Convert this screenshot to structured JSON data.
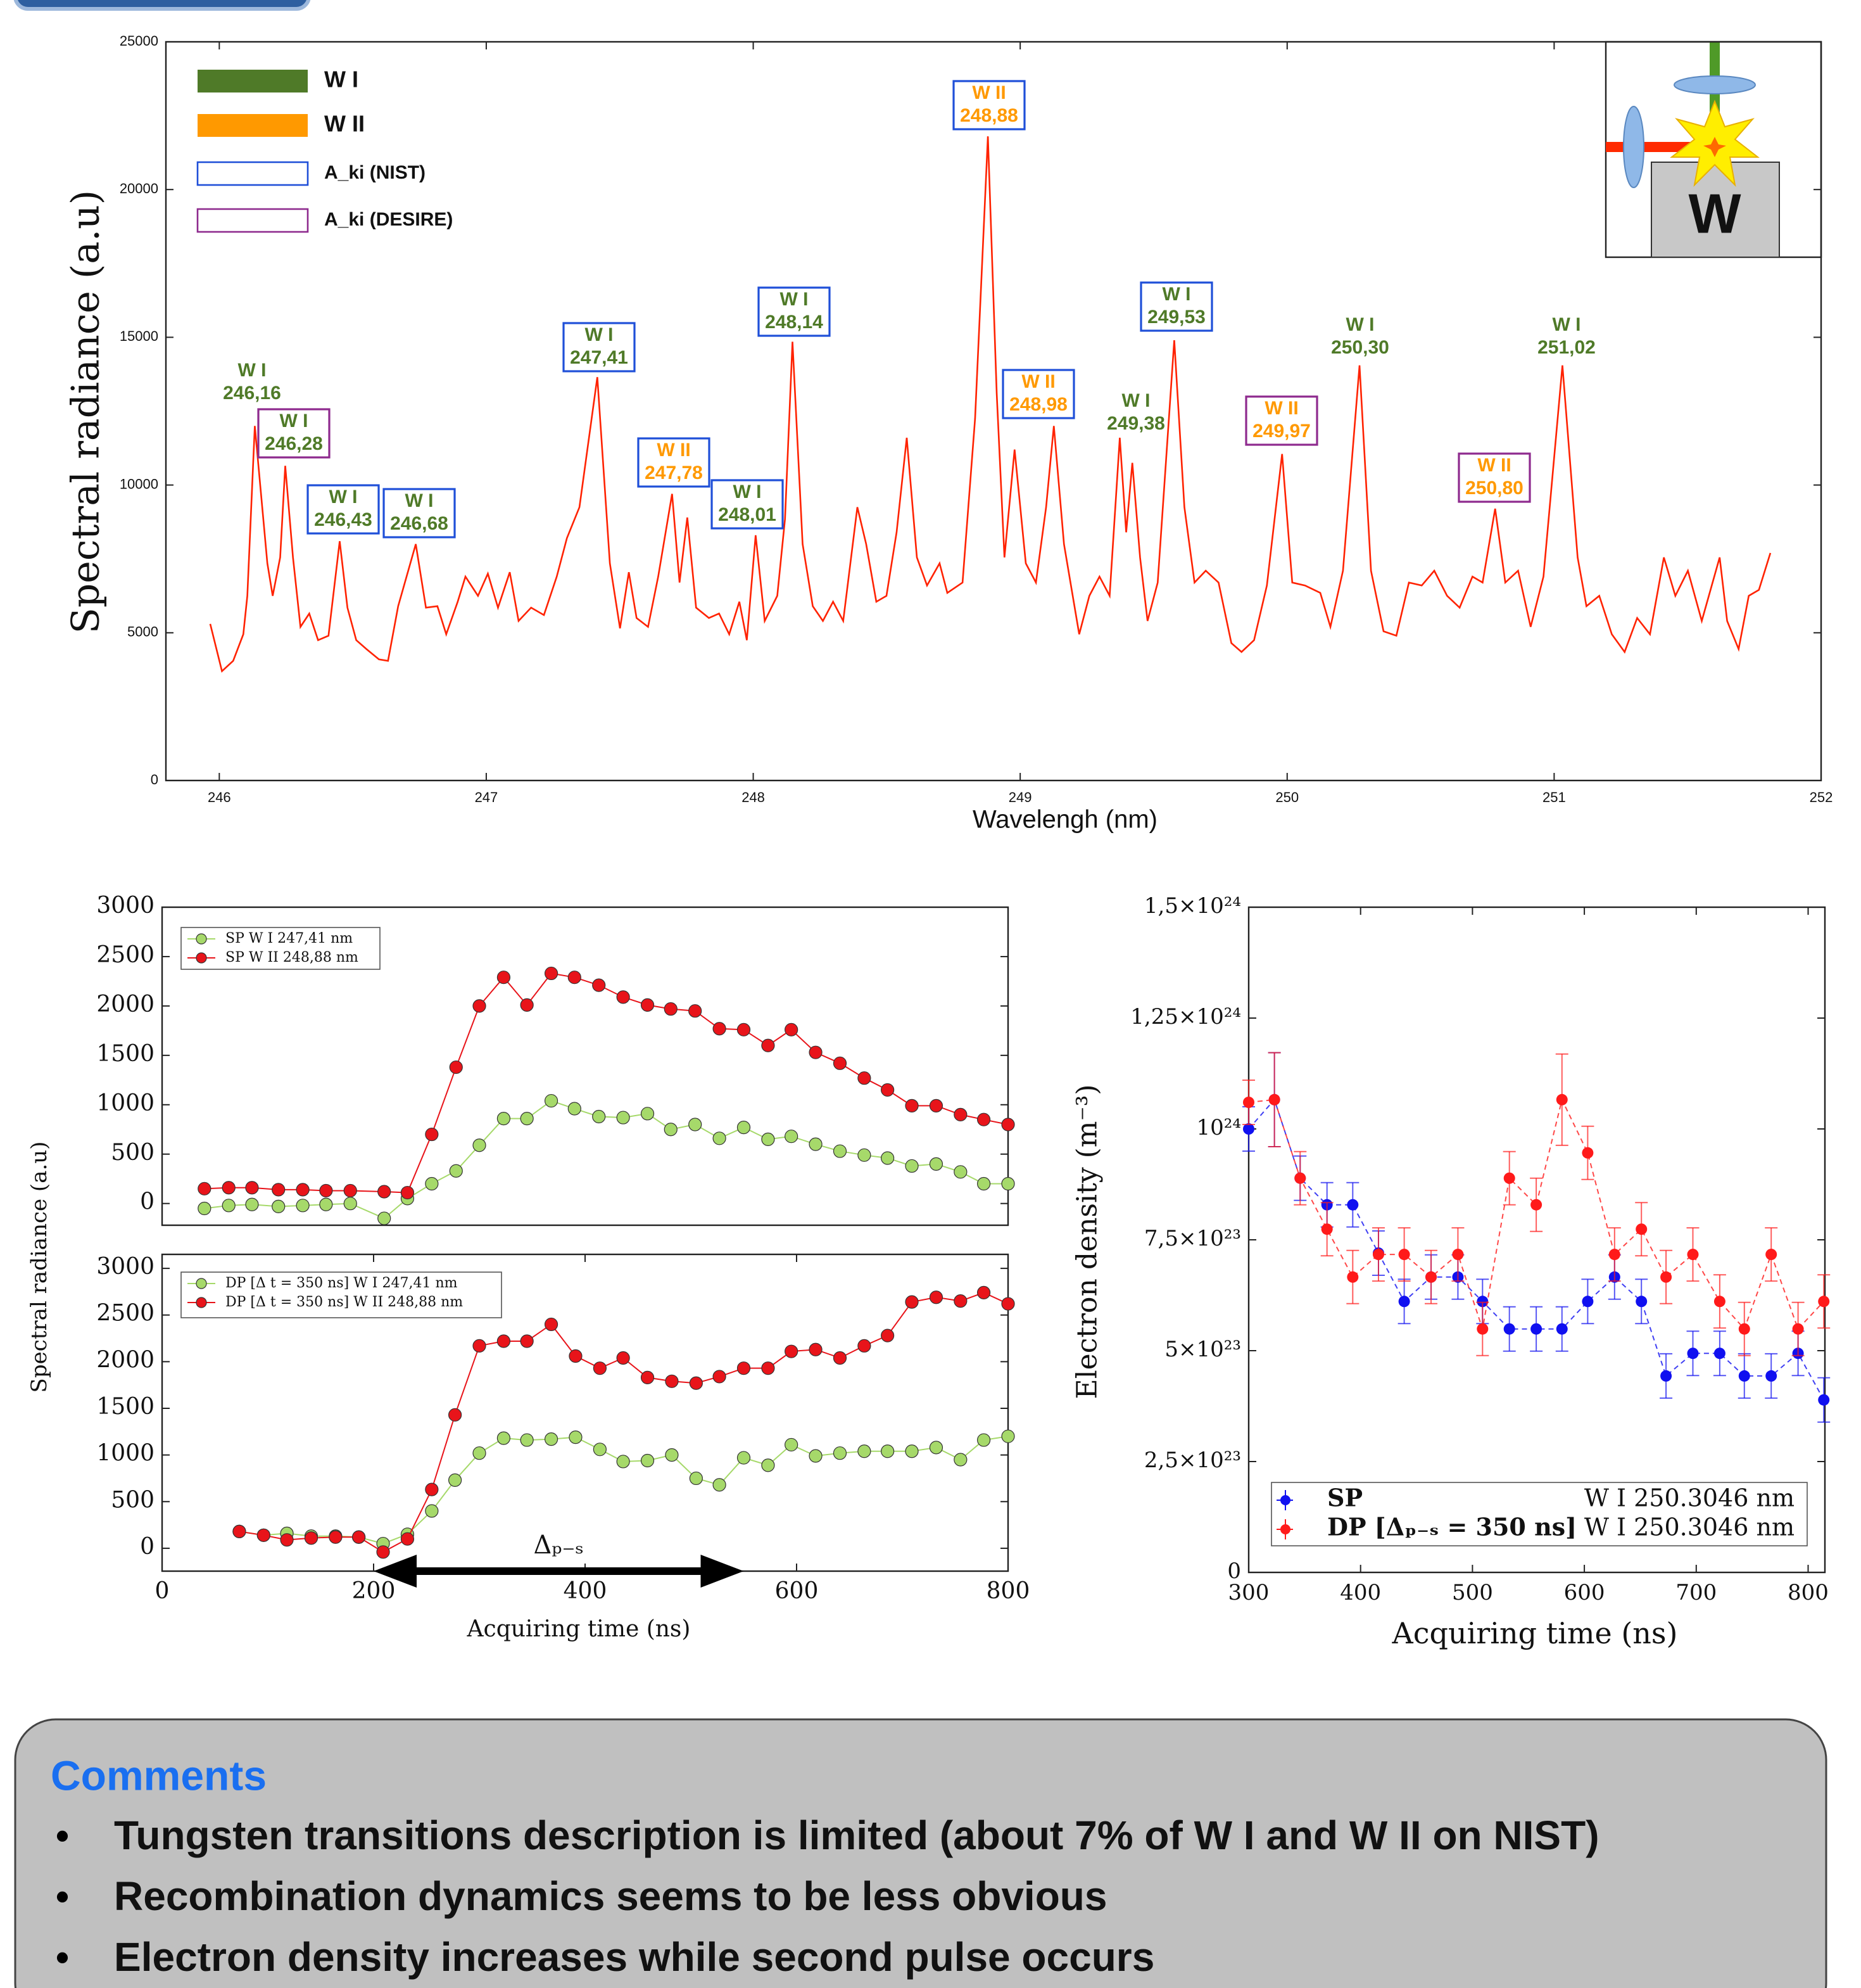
{
  "chart_data": [
    {
      "type": "line",
      "xlabel": "Wavelengh (nm)",
      "ylabel": "Spectral radiance (a.u)",
      "color": "#ff2200",
      "xlim": [
        245.8,
        252
      ],
      "xticks": [
        246,
        247,
        248,
        249,
        250,
        251,
        252
      ],
      "ylim": [
        0,
        25000
      ],
      "yticks": [
        0,
        5000,
        10000,
        15000,
        20000,
        25000
      ],
      "x": [
        245.966,
        246.01,
        246.052,
        246.09,
        246.105,
        246.133,
        246.18,
        246.2,
        246.228,
        246.247,
        246.276,
        246.304,
        246.337,
        246.37,
        246.409,
        246.451,
        246.48,
        246.513,
        246.551,
        246.598,
        246.632,
        246.67,
        246.736,
        246.774,
        246.817,
        246.85,
        246.893,
        246.922,
        246.969,
        247.006,
        247.044,
        247.088,
        247.121,
        247.168,
        247.216,
        247.264,
        247.302,
        247.349,
        247.416,
        247.463,
        247.501,
        247.534,
        247.563,
        247.606,
        247.644,
        247.696,
        247.724,
        247.753,
        247.786,
        247.834,
        247.872,
        247.91,
        247.948,
        247.976,
        248.009,
        248.043,
        248.09,
        248.119,
        248.147,
        248.185,
        248.223,
        248.261,
        248.299,
        248.337,
        248.39,
        248.423,
        248.461,
        248.499,
        248.537,
        248.575,
        248.613,
        248.651,
        248.698,
        248.727,
        248.784,
        248.831,
        248.879,
        248.912,
        248.941,
        248.979,
        249.021,
        249.059,
        249.097,
        249.126,
        249.164,
        249.221,
        249.259,
        249.297,
        249.335,
        249.373,
        249.397,
        249.42,
        249.449,
        249.477,
        249.515,
        249.577,
        249.615,
        249.653,
        249.695,
        249.743,
        249.791,
        249.829,
        249.876,
        249.924,
        249.981,
        250.019,
        250.067,
        250.124,
        250.162,
        250.209,
        250.271,
        250.314,
        250.361,
        250.409,
        250.456,
        250.504,
        250.551,
        250.599,
        250.646,
        250.694,
        250.732,
        250.779,
        250.817,
        250.865,
        250.912,
        250.96,
        251.031,
        251.088,
        251.121,
        251.169,
        251.216,
        251.264,
        251.311,
        251.359,
        251.411,
        251.454,
        251.501,
        251.553,
        251.62,
        251.648,
        251.691,
        251.729,
        251.767,
        251.81
      ],
      "values": [
        5300,
        3700,
        4050,
        4950,
        6250,
        12000,
        7350,
        6250,
        7550,
        10650,
        7550,
        5200,
        5650,
        4750,
        4900,
        8100,
        5850,
        4750,
        4450,
        4100,
        4050,
        5900,
        8000,
        5850,
        5900,
        4950,
        6050,
        6900,
        6250,
        7000,
        5850,
        7050,
        5400,
        5850,
        5600,
        6900,
        8200,
        9250,
        13650,
        7350,
        5150,
        7050,
        5500,
        5200,
        6900,
        9700,
        6700,
        8900,
        5850,
        5500,
        5650,
        4950,
        6050,
        4750,
        8300,
        5400,
        6250,
        8850,
        14850,
        8000,
        5900,
        5400,
        6050,
        5400,
        9250,
        8000,
        6050,
        6250,
        8400,
        11600,
        7550,
        6600,
        7350,
        6350,
        6700,
        12250,
        21800,
        13100,
        7550,
        11200,
        7350,
        6700,
        9250,
        12000,
        8000,
        4950,
        6250,
        6900,
        6250,
        11600,
        8400,
        10750,
        7550,
        5400,
        6700,
        14900,
        9250,
        6700,
        7100,
        6700,
        4650,
        4350,
        4750,
        6600,
        11050,
        6700,
        6600,
        6350,
        5200,
        7100,
        14050,
        7100,
        5050,
        4900,
        6700,
        6600,
        7100,
        6250,
        5850,
        6900,
        6700,
        9200,
        6700,
        7100,
        5200,
        6900,
        14050,
        7550,
        5900,
        6250,
        4950,
        4350,
        5500,
        4950,
        7550,
        6250,
        7100,
        5400,
        7550,
        5400,
        4450,
        6250,
        6450,
        7700
      ],
      "legend": [
        {
          "label": "W I",
          "color": "#4f7a28",
          "style": "fill"
        },
        {
          "label": "W II",
          "color": "#ff9900",
          "style": "fill"
        },
        {
          "label": "A_ki (NIST)",
          "color": "#1f4fd8",
          "style": "outline"
        },
        {
          "label": "A_ki (DESIRE)",
          "color": "#8e2a8e",
          "style": "outline"
        }
      ],
      "annotations": [
        {
          "lines": [
            "W I",
            "246,16"
          ],
          "color": "#4f7a28"
        },
        {
          "lines": [
            "W I",
            "246,28"
          ],
          "color": "#4f7a28",
          "box": "#8e2a8e"
        },
        {
          "lines": [
            "W I",
            "246,43"
          ],
          "color": "#4f7a28",
          "box": "#1f4fd8"
        },
        {
          "lines": [
            "W I",
            "246,68"
          ],
          "color": "#4f7a28",
          "box": "#1f4fd8"
        },
        {
          "lines": [
            "W I",
            "247,41"
          ],
          "color": "#4f7a28",
          "box": "#1f4fd8"
        },
        {
          "lines": [
            "W II",
            "247,78"
          ],
          "color": "#ff9900",
          "box": "#1f4fd8"
        },
        {
          "lines": [
            "W I",
            "248,01"
          ],
          "color": "#4f7a28",
          "box": "#1f4fd8"
        },
        {
          "lines": [
            "W I",
            "248,14"
          ],
          "color": "#4f7a28",
          "box": "#1f4fd8"
        },
        {
          "lines": [
            "W II",
            "248,88"
          ],
          "color": "#ff9900",
          "box": "#1f4fd8"
        },
        {
          "lines": [
            "W II",
            "248,98"
          ],
          "color": "#ff9900",
          "box": "#1f4fd8"
        },
        {
          "lines": [
            "W I",
            "249,38"
          ],
          "color": "#4f7a28"
        },
        {
          "lines": [
            "W I",
            "249,53"
          ],
          "color": "#4f7a28",
          "box": "#1f4fd8"
        },
        {
          "lines": [
            "W II",
            "249,97"
          ],
          "color": "#ff9900",
          "box": "#8e2a8e"
        },
        {
          "lines": [
            "W I",
            "250,30"
          ],
          "color": "#4f7a28"
        },
        {
          "lines": [
            "W II",
            "250,80"
          ],
          "color": "#ff9900",
          "box": "#8e2a8e"
        },
        {
          "lines": [
            "W I",
            "251,02"
          ],
          "color": "#4f7a28"
        }
      ],
      "inset_label": "W"
    },
    {
      "type": "line",
      "markers": true,
      "ylabel": "Spectral radiance (a.u)",
      "xlim": [
        0,
        800
      ],
      "ylim": [
        -220,
        3000
      ],
      "yticks": [
        0,
        500,
        1000,
        1500,
        2000,
        2500,
        3000
      ],
      "x": [
        40,
        63,
        85,
        110,
        133,
        155,
        178,
        210,
        232,
        255,
        278,
        300,
        323,
        345,
        368,
        390,
        413,
        436,
        459,
        481,
        504,
        527,
        550,
        573,
        595,
        618,
        641,
        664,
        686,
        709,
        732,
        755,
        777,
        800
      ],
      "series": [
        {
          "name": "SP W I 247,41 nm",
          "color": "#a6d96a",
          "values": [
            -50,
            -20,
            -10,
            -30,
            -20,
            -10,
            0,
            -150,
            50,
            200,
            330,
            590,
            860,
            860,
            1040,
            960,
            880,
            870,
            910,
            750,
            800,
            660,
            770,
            650,
            680,
            600,
            530,
            490,
            460,
            380,
            400,
            320,
            200,
            200
          ]
        },
        {
          "name": "SP W II 248,88 nm",
          "color": "#e8141a",
          "values": [
            150,
            160,
            160,
            140,
            140,
            130,
            130,
            120,
            110,
            700,
            1380,
            2000,
            2290,
            2010,
            2330,
            2290,
            2210,
            2090,
            2010,
            1970,
            1950,
            1770,
            1760,
            1600,
            1760,
            1530,
            1420,
            1270,
            1150,
            990,
            990,
            900,
            850,
            800
          ]
        }
      ]
    },
    {
      "type": "line",
      "markers": true,
      "xlabel": "Acquiring time (ns)",
      "xlim": [
        0,
        800
      ],
      "xticks": [
        0,
        200,
        400,
        600,
        800
      ],
      "ylim": [
        -245,
        3150
      ],
      "yticks": [
        0,
        500,
        1000,
        1500,
        2000,
        2500,
        3000
      ],
      "x": [
        73,
        96,
        118,
        141,
        164,
        186,
        209,
        232,
        255,
        277,
        300,
        323,
        345,
        368,
        391,
        414,
        436,
        459,
        482,
        505,
        527,
        550,
        573,
        595,
        618,
        641,
        664,
        686,
        709,
        732,
        755,
        777,
        800
      ],
      "series": [
        {
          "name": "DP [Δ t = 350 ns] W I 247,41 nm",
          "color": "#a6d96a",
          "values": [
            180,
            140,
            160,
            130,
            130,
            120,
            50,
            150,
            400,
            730,
            1020,
            1180,
            1160,
            1170,
            1190,
            1060,
            930,
            940,
            1000,
            750,
            680,
            970,
            890,
            1110,
            990,
            1020,
            1040,
            1040,
            1040,
            1080,
            950,
            1160,
            1200
          ]
        },
        {
          "name": "DP [Δ t = 350 ns] W II 248,88 nm",
          "color": "#e8141a",
          "values": [
            180,
            140,
            90,
            110,
            120,
            120,
            -40,
            100,
            630,
            1430,
            2170,
            2220,
            2220,
            2400,
            2060,
            1930,
            2040,
            1830,
            1790,
            1770,
            1840,
            1930,
            1930,
            2110,
            2130,
            2040,
            2170,
            2280,
            2640,
            2690,
            2650,
            2740,
            2620
          ]
        }
      ],
      "annotation": {
        "text": "Δₚ₋ₛ",
        "from": 200,
        "to": 550
      }
    },
    {
      "type": "scatter",
      "xlabel": "Acquiring time (ns)",
      "ylabel": "Electron density (m⁻³)",
      "xlim": [
        300,
        815
      ],
      "xticks": [
        300,
        400,
        500,
        600,
        700,
        800
      ],
      "ylim": [
        0,
        1.5e+24
      ],
      "yticks": [
        0,
        {
          "value": 2.5e+23,
          "label": "2,5×10²³"
        },
        {
          "value": 5e+23,
          "label": "5×10²³"
        },
        {
          "value": 7.5e+23,
          "label": "7,5×10²³"
        },
        {
          "value": 1e+24,
          "label": "10²⁴"
        },
        {
          "value": 1.25e+24,
          "label": "1,25×10²⁴"
        },
        {
          "value": 1.5e+24,
          "label": "1,5×10²⁴"
        }
      ],
      "x": [
        300,
        323,
        346,
        370,
        393,
        416,
        439,
        463,
        487,
        509,
        533,
        557,
        580,
        603,
        627,
        651,
        673,
        697,
        721,
        743,
        767,
        791,
        814
      ],
      "series": [
        {
          "name": "SP",
          "note": "W I 250.3046 nm",
          "color": "#1010f0",
          "values": [
            1e+24,
            1.066e+24,
            8.89e+23,
            8.29e+23,
            8.29e+23,
            7.2e+23,
            6.11e+23,
            6.66e+23,
            6.66e+23,
            6.11e+23,
            5.49e+23,
            5.49e+23,
            5.49e+23,
            6.11e+23,
            6.66e+23,
            6.11e+23,
            4.43e+23,
            4.94e+23,
            4.94e+23,
            4.43e+23,
            4.43e+23,
            4.94e+23,
            3.89e+23
          ],
          "errors": [
            5e+22,
            1.06e+23,
            5e+22,
            5e+22,
            5e+22,
            5e+22,
            5e+22,
            5e+22,
            5e+22,
            5e+22,
            5e+22,
            5e+22,
            5e+22,
            5e+22,
            5e+22,
            5e+22,
            5e+22,
            5e+22,
            5e+22,
            5e+22,
            5e+22,
            5e+22,
            5e+22
          ]
        },
        {
          "name": "DP [Δₚ₋ₛ = 350 ns]",
          "note": "W I 250.3046 nm",
          "color": "#ff1a1a",
          "values": [
            1.06e+24,
            1.066e+24,
            8.89e+23,
            7.74e+23,
            6.66e+23,
            7.17e+23,
            7.17e+23,
            6.66e+23,
            7.17e+23,
            5.49e+23,
            8.89e+23,
            8.29e+23,
            1.066e+24,
            9.46e+23,
            7.17e+23,
            7.74e+23,
            6.66e+23,
            7.17e+23,
            6.11e+23,
            5.49e+23,
            7.17e+23,
            5.49e+23,
            6.11e+23
          ],
          "errors": [
            5e+22,
            1.06e+23,
            6e+22,
            6e+22,
            6e+22,
            6e+22,
            6e+22,
            6e+22,
            6e+22,
            6e+22,
            6e+22,
            6e+22,
            1.03e+23,
            6e+22,
            6e+22,
            6e+22,
            6e+22,
            6e+22,
            6e+22,
            6e+22,
            6e+22,
            6e+22,
            6e+22
          ]
        }
      ]
    }
  ],
  "comments": {
    "title": "Comments",
    "items": [
      "Tungsten transitions description is limited (about 7% of W I and W II on NIST)",
      "Recombination dynamics seems to be less obvious",
      "Electron density increases while second pulse occurs"
    ]
  }
}
